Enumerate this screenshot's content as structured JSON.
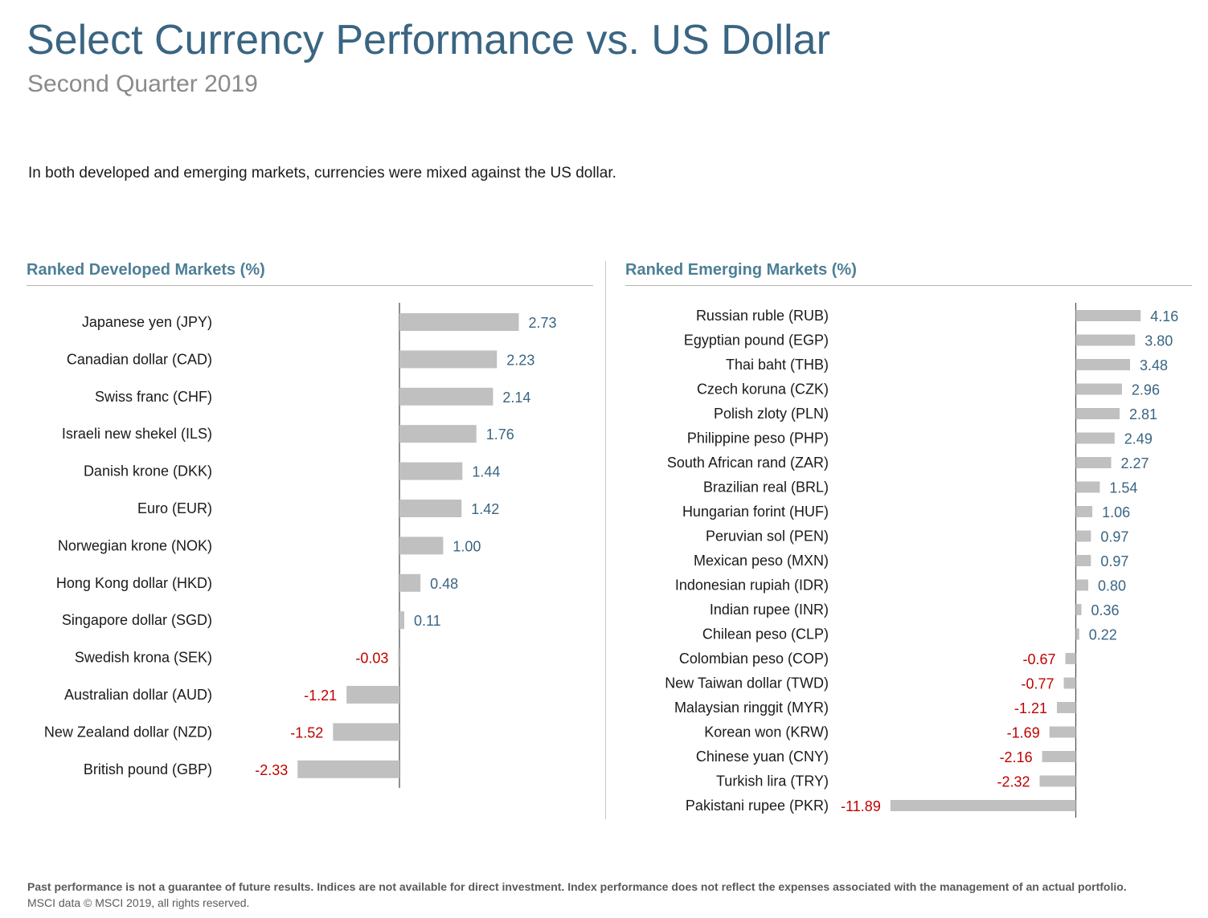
{
  "header": {
    "title": "Select Currency Performance vs. US Dollar",
    "subtitle": "Second Quarter 2019",
    "intro": "In both developed and emerging markets, currencies were mixed against the US dollar."
  },
  "colors": {
    "bar": "#c0c0c0",
    "positive_label": "#3a6582",
    "negative_label": "#c00000",
    "axis": "#555555"
  },
  "chart_data": [
    {
      "type": "bar",
      "orientation": "horizontal",
      "title": "Ranked Developed Markets (%)",
      "categories": [
        "Japanese yen (JPY)",
        "Canadian dollar (CAD)",
        "Swiss franc (CHF)",
        "Israeli new shekel (ILS)",
        "Danish krone (DKK)",
        "Euro (EUR)",
        "Norwegian krone (NOK)",
        "Hong Kong dollar (HKD)",
        "Singapore dollar (SGD)",
        "Swedish krona (SEK)",
        "Australian dollar (AUD)",
        "New Zealand dollar (NZD)",
        "British pound (GBP)"
      ],
      "values": [
        2.73,
        2.23,
        2.14,
        1.76,
        1.44,
        1.42,
        1.0,
        0.48,
        0.11,
        -0.03,
        -1.21,
        -1.52,
        -2.33
      ],
      "labels": [
        "2.73",
        "2.23",
        "2.14",
        "1.76",
        "1.44",
        "1.42",
        "1.00",
        "0.48",
        "0.11",
        "-0.03",
        "-1.21",
        "-1.52",
        "-2.33"
      ]
    },
    {
      "type": "bar",
      "orientation": "horizontal",
      "title": "Ranked Emerging Markets (%)",
      "categories": [
        "Russian ruble (RUB)",
        "Egyptian pound (EGP)",
        "Thai baht (THB)",
        "Czech koruna (CZK)",
        "Polish zloty (PLN)",
        "Philippine peso (PHP)",
        "South African rand (ZAR)",
        "Brazilian real (BRL)",
        "Hungarian forint (HUF)",
        "Peruvian sol (PEN)",
        "Mexican peso (MXN)",
        "Indonesian rupiah (IDR)",
        "Indian rupee (INR)",
        "Chilean peso (CLP)",
        "Colombian peso (COP)",
        "New Taiwan dollar (TWD)",
        "Malaysian ringgit (MYR)",
        "Korean won (KRW)",
        "Chinese yuan (CNY)",
        "Turkish lira (TRY)",
        "Pakistani rupee (PKR)"
      ],
      "values": [
        4.16,
        3.8,
        3.48,
        2.96,
        2.81,
        2.49,
        2.27,
        1.54,
        1.06,
        0.97,
        0.97,
        0.8,
        0.36,
        0.22,
        -0.67,
        -0.77,
        -1.21,
        -1.69,
        -2.16,
        -2.32,
        -11.89
      ],
      "labels": [
        "4.16",
        "3.80",
        "3.48",
        "2.96",
        "2.81",
        "2.49",
        "2.27",
        "1.54",
        "1.06",
        "0.97",
        "0.97",
        "0.80",
        "0.36",
        "0.22",
        "-0.67",
        "-0.77",
        "-1.21",
        "-1.69",
        "-2.16",
        "-2.32",
        "-11.89"
      ]
    }
  ],
  "footer": {
    "disclaimer": "Past performance is not a guarantee of future results. Indices are not available for direct investment. Index performance does not reflect the expenses associated with the management of an actual portfolio.",
    "source": "MSCI data © MSCI 2019, all rights reserved."
  }
}
